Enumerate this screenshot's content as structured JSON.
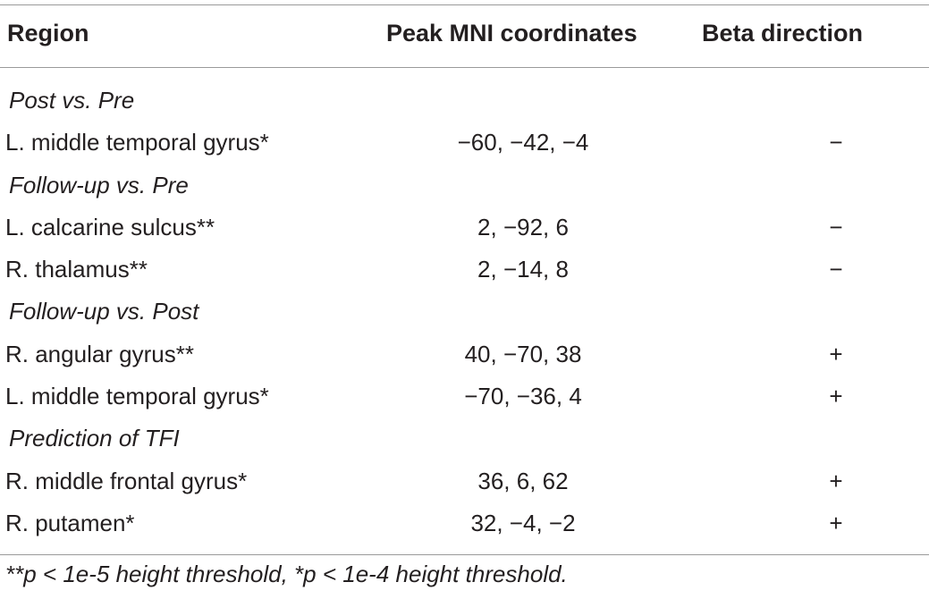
{
  "table": {
    "headers": {
      "region": "Region",
      "coords": "Peak MNI coordinates",
      "beta": "Beta direction"
    },
    "rows": [
      {
        "type": "section",
        "region": "Post vs. Pre",
        "coords": "",
        "beta": ""
      },
      {
        "type": "data",
        "region": "L. middle temporal gyrus*",
        "coords": "−60, −42, −4",
        "beta": "−"
      },
      {
        "type": "section",
        "region": "Follow-up vs. Pre",
        "coords": "",
        "beta": ""
      },
      {
        "type": "data",
        "region": "L. calcarine sulcus**",
        "coords": "2, −92, 6",
        "beta": "−"
      },
      {
        "type": "data",
        "region": "R. thalamus**",
        "coords": "2, −14, 8",
        "beta": "−"
      },
      {
        "type": "section",
        "region": "Follow-up vs. Post",
        "coords": "",
        "beta": ""
      },
      {
        "type": "data",
        "region": "R. angular gyrus**",
        "coords": "40, −70, 38",
        "beta": "+"
      },
      {
        "type": "data",
        "region": "L. middle temporal gyrus*",
        "coords": "−70, −36, 4",
        "beta": "+"
      },
      {
        "type": "section",
        "region": "Prediction of TFI",
        "coords": "",
        "beta": ""
      },
      {
        "type": "data",
        "region": "R. middle frontal gyrus*",
        "coords": "36, 6, 62",
        "beta": "+"
      },
      {
        "type": "data",
        "region": "R. putamen*",
        "coords": "32, −4, −2",
        "beta": "+"
      }
    ],
    "footnote": "**p < 1e-5 height threshold, *p < 1e-4 height threshold."
  }
}
